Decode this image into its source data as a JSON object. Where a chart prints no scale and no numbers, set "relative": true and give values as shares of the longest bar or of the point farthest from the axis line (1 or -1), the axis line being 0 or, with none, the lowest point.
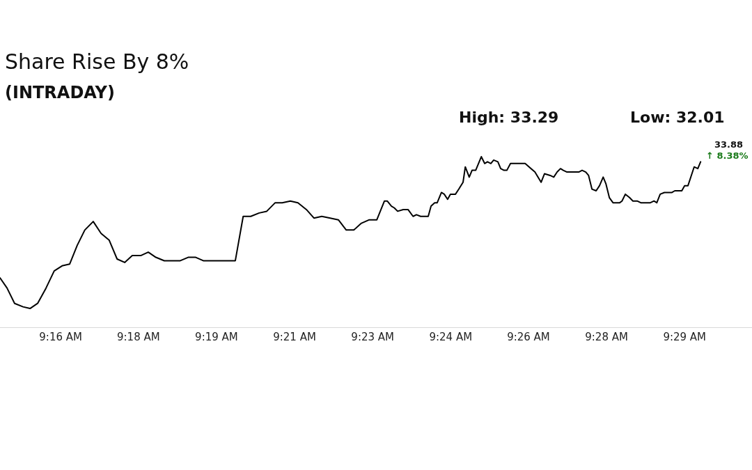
{
  "chart_data": {
    "type": "line",
    "title": "Share Rise By 8%",
    "subtitle": "(INTRADAY)",
    "relative": true,
    "annotations": [
      "High: 33.29",
      "Low: 32.01",
      {
        "text": "33.88",
        "x": 9.4946,
        "y": 0.97
      },
      {
        "text": "↑ 8.38%",
        "x": 9.4946,
        "y": 0.97
      }
    ],
    "xlim": [
      9.2451,
      9.5129
    ],
    "xticks": [
      {
        "value": 9.2667,
        "label": "9:16 AM"
      },
      {
        "value": 9.2944,
        "label": "9:18 AM"
      },
      {
        "value": 9.3222,
        "label": "9:19 AM"
      },
      {
        "value": 9.35,
        "label": "9:21 AM"
      },
      {
        "value": 9.3778,
        "label": "9:23 AM"
      },
      {
        "value": 9.4056,
        "label": "9:24 AM"
      },
      {
        "value": 9.4333,
        "label": "9:26 AM"
      },
      {
        "value": 9.4611,
        "label": "9:28 AM"
      },
      {
        "value": 9.4889,
        "label": "9:29 AM"
      }
    ],
    "x": [
      9.2451,
      9.2476,
      9.2503,
      9.2533,
      9.2558,
      9.2585,
      9.2615,
      9.2644,
      9.2672,
      9.2699,
      9.2726,
      9.2753,
      9.2783,
      9.2811,
      9.284,
      9.2868,
      9.2895,
      9.2922,
      9.2952,
      9.2979,
      9.3006,
      9.3036,
      9.3093,
      9.3121,
      9.3148,
      9.3175,
      9.3289,
      9.3317,
      9.3344,
      9.3374,
      9.3401,
      9.3431,
      9.3456,
      9.3485,
      9.3512,
      9.3542,
      9.3569,
      9.3597,
      9.3627,
      9.3656,
      9.3684,
      9.3711,
      9.3738,
      9.3766,
      9.3793,
      9.382,
      9.383,
      9.3845,
      9.3855,
      9.3867,
      9.3887,
      9.3904,
      9.3922,
      9.3934,
      9.3949,
      9.3976,
      9.3986,
      9.3999,
      9.4008,
      9.4023,
      9.4033,
      9.4045,
      9.4055,
      9.4073,
      9.4085,
      9.41,
      9.4108,
      9.4122,
      9.4132,
      9.4145,
      9.4165,
      9.4177,
      9.4187,
      9.4199,
      9.4209,
      9.4224,
      9.4234,
      9.4246,
      9.4256,
      9.4269,
      9.4286,
      9.4301,
      9.4321,
      9.4356,
      9.4378,
      9.439,
      9.441,
      9.4423,
      9.4435,
      9.4447,
      9.4457,
      9.447,
      9.4484,
      9.4512,
      9.4524,
      9.4537,
      9.4547,
      9.4559,
      9.4574,
      9.4586,
      9.4599,
      9.4609,
      9.4621,
      9.4634,
      9.4658,
      9.4666,
      9.4678,
      9.4693,
      9.4705,
      9.472,
      9.4733,
      9.475,
      9.4767,
      9.478,
      9.479,
      9.4802,
      9.4817,
      9.4844,
      9.4854,
      9.4879,
      9.4889,
      9.4901,
      9.4923,
      9.4936,
      9.4946
    ],
    "series": [
      {
        "color": "#000000",
        "values": [
          0.29,
          0.23,
          0.14,
          0.12,
          0.11,
          0.14,
          0.23,
          0.33,
          0.36,
          0.37,
          0.48,
          0.57,
          0.62,
          0.55,
          0.51,
          0.4,
          0.38,
          0.42,
          0.42,
          0.44,
          0.41,
          0.39,
          0.39,
          0.41,
          0.41,
          0.39,
          0.39,
          0.65,
          0.65,
          0.67,
          0.68,
          0.73,
          0.73,
          0.74,
          0.73,
          0.69,
          0.64,
          0.65,
          0.64,
          0.63,
          0.57,
          0.57,
          0.61,
          0.63,
          0.63,
          0.74,
          0.74,
          0.71,
          0.7,
          0.68,
          0.69,
          0.69,
          0.65,
          0.66,
          0.65,
          0.65,
          0.71,
          0.73,
          0.73,
          0.79,
          0.78,
          0.75,
          0.78,
          0.78,
          0.81,
          0.85,
          0.94,
          0.88,
          0.92,
          0.92,
          1.0,
          0.96,
          0.97,
          0.96,
          0.98,
          0.97,
          0.93,
          0.92,
          0.92,
          0.96,
          0.96,
          0.96,
          0.96,
          0.91,
          0.85,
          0.9,
          0.89,
          0.88,
          0.91,
          0.93,
          0.92,
          0.91,
          0.91,
          0.91,
          0.92,
          0.91,
          0.89,
          0.81,
          0.8,
          0.83,
          0.88,
          0.84,
          0.76,
          0.73,
          0.73,
          0.74,
          0.78,
          0.76,
          0.74,
          0.74,
          0.73,
          0.73,
          0.73,
          0.74,
          0.73,
          0.78,
          0.79,
          0.79,
          0.8,
          0.8,
          0.83,
          0.83,
          0.94,
          0.93,
          0.97
        ]
      }
    ]
  }
}
